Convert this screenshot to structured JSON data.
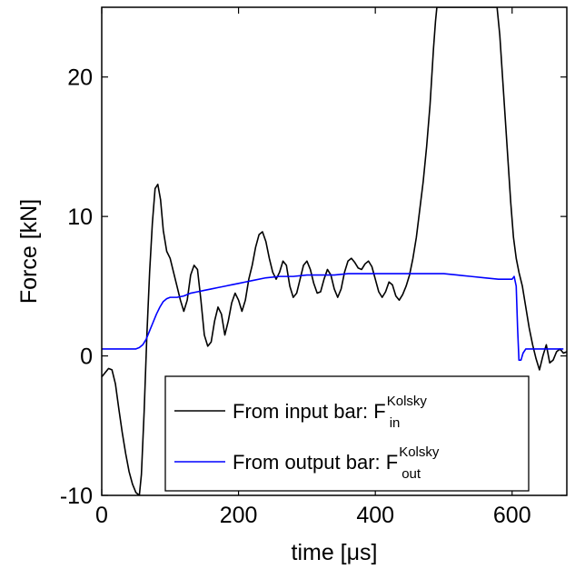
{
  "chart_data": {
    "type": "line",
    "xlabel": "time [μs]",
    "ylabel": "Force [kN]",
    "xlim": [
      0,
      680
    ],
    "ylim": [
      -10,
      25
    ],
    "xticks": [
      0,
      200,
      400,
      600
    ],
    "yticks": [
      -10,
      0,
      10,
      20
    ],
    "xtick_labels": [
      "0",
      "200",
      "400",
      "600"
    ],
    "ytick_labels": [
      "-10",
      "0",
      "10",
      "20"
    ],
    "grid": false,
    "legend_position": "bottom-right",
    "series": [
      {
        "name": "From input bar: F",
        "name_sup": "Kolsky",
        "name_sub": "in",
        "color": "#000000",
        "x": [
          0,
          5,
          10,
          15,
          20,
          25,
          30,
          35,
          40,
          45,
          50,
          55,
          58,
          62,
          66,
          70,
          74,
          78,
          82,
          86,
          90,
          95,
          100,
          105,
          110,
          115,
          120,
          125,
          130,
          135,
          140,
          145,
          150,
          155,
          160,
          165,
          170,
          175,
          180,
          185,
          190,
          195,
          200,
          205,
          210,
          215,
          220,
          225,
          230,
          235,
          240,
          245,
          250,
          255,
          260,
          265,
          270,
          275,
          280,
          285,
          290,
          295,
          300,
          305,
          310,
          315,
          320,
          325,
          330,
          335,
          340,
          345,
          350,
          355,
          360,
          365,
          370,
          375,
          380,
          385,
          390,
          395,
          400,
          405,
          410,
          415,
          420,
          425,
          430,
          435,
          440,
          445,
          450,
          455,
          460,
          465,
          470,
          475,
          480,
          485,
          488,
          490,
          578,
          582,
          586,
          590,
          594,
          598,
          602,
          606,
          610,
          615,
          620,
          625,
          630,
          635,
          640,
          645,
          650,
          655,
          660,
          665,
          670,
          675,
          680
        ],
        "values": [
          -1.5,
          -1.2,
          -0.9,
          -1.0,
          -2.0,
          -3.8,
          -5.5,
          -7.0,
          -8.3,
          -9.2,
          -9.8,
          -10.0,
          -8.5,
          -4.0,
          1.5,
          6.0,
          9.5,
          12.0,
          12.3,
          11.2,
          9.0,
          7.5,
          7.0,
          6.0,
          5.0,
          4.0,
          3.2,
          4.0,
          5.8,
          6.5,
          6.2,
          4.0,
          1.5,
          0.7,
          1.0,
          2.5,
          3.5,
          3.0,
          1.5,
          2.5,
          3.8,
          4.5,
          4.0,
          3.2,
          4.0,
          5.5,
          6.5,
          7.8,
          8.7,
          8.9,
          8.2,
          7.0,
          6.0,
          5.5,
          6.0,
          6.8,
          6.5,
          5.0,
          4.2,
          4.5,
          5.5,
          6.5,
          6.8,
          6.2,
          5.2,
          4.5,
          4.6,
          5.5,
          6.2,
          5.8,
          4.8,
          4.2,
          4.8,
          6.0,
          6.8,
          7.0,
          6.7,
          6.3,
          6.2,
          6.6,
          6.8,
          6.4,
          5.5,
          4.6,
          4.2,
          4.6,
          5.3,
          5.1,
          4.3,
          4.0,
          4.4,
          5.0,
          5.8,
          7.0,
          8.5,
          10.5,
          12.5,
          15.0,
          18.0,
          22.0,
          24.0,
          25.0,
          25.0,
          23.0,
          20.0,
          17.0,
          14.0,
          11.0,
          8.5,
          7.0,
          6.0,
          5.0,
          3.5,
          2.0,
          0.8,
          -0.2,
          -1.0,
          0.0,
          0.8,
          -0.5,
          -0.3,
          0.3,
          0.5,
          0.2,
          0.3
        ]
      },
      {
        "name": "From output bar: F",
        "name_sup": "Kolsky",
        "name_sub": "out",
        "color": "#0000ff",
        "x": [
          0,
          20,
          40,
          50,
          55,
          60,
          65,
          70,
          75,
          80,
          85,
          90,
          95,
          100,
          110,
          120,
          130,
          140,
          150,
          160,
          170,
          180,
          190,
          200,
          210,
          220,
          240,
          260,
          280,
          300,
          320,
          340,
          360,
          380,
          400,
          420,
          440,
          460,
          480,
          500,
          520,
          540,
          560,
          580,
          600,
          603,
          606,
          608,
          610,
          613,
          616,
          620,
          630,
          640,
          650,
          660,
          670,
          675
        ],
        "values": [
          0.5,
          0.5,
          0.5,
          0.5,
          0.6,
          0.8,
          1.2,
          1.8,
          2.4,
          3.0,
          3.5,
          3.9,
          4.1,
          4.2,
          4.2,
          4.3,
          4.5,
          4.6,
          4.7,
          4.8,
          4.9,
          5.0,
          5.1,
          5.2,
          5.3,
          5.4,
          5.6,
          5.7,
          5.7,
          5.8,
          5.8,
          5.8,
          5.9,
          5.9,
          5.9,
          5.9,
          5.9,
          5.9,
          5.9,
          5.9,
          5.8,
          5.7,
          5.6,
          5.5,
          5.5,
          5.7,
          5.0,
          2.0,
          -0.3,
          -0.3,
          0.2,
          0.5,
          0.5,
          0.5,
          0.5,
          0.5,
          0.5,
          0.5
        ]
      }
    ]
  }
}
